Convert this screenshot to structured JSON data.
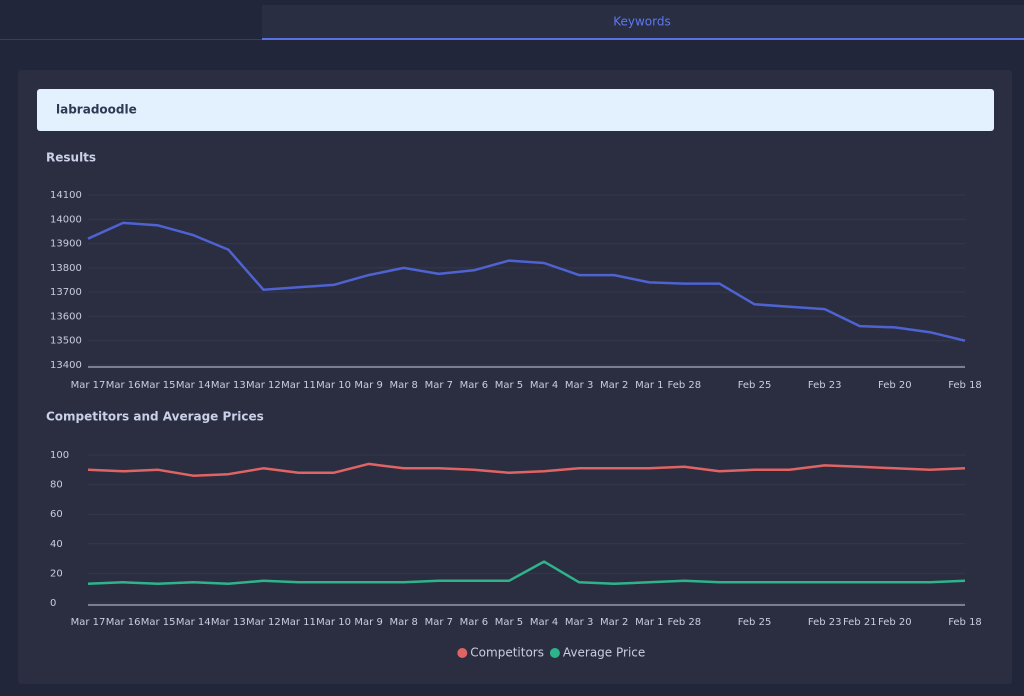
{
  "tabs": [
    "Keywords"
  ],
  "keyword": "labradoodle",
  "chart_data": [
    {
      "type": "line",
      "title": "Results",
      "categories": [
        "Mar 17",
        "Mar 16",
        "Mar 15",
        "Mar 14",
        "Mar 13",
        "Mar 12",
        "Mar 11",
        "Mar 10",
        "Mar 9",
        "Mar 8",
        "Mar 7",
        "Mar 6",
        "Mar 5",
        "Mar 4",
        "Mar 3",
        "Mar 2",
        "Mar 1",
        "Feb 28",
        null,
        "Feb 25",
        null,
        "Feb 23",
        null,
        "Feb 20",
        null,
        "Feb 18"
      ],
      "values": [
        13920,
        13985,
        13975,
        13935,
        13875,
        13710,
        13720,
        13730,
        13770,
        13800,
        13775,
        13790,
        13830,
        13820,
        13770,
        13770,
        13740,
        13735,
        13735,
        13650,
        13640,
        13630,
        13560,
        13555,
        13535,
        13500
      ],
      "color": "#4e63d1",
      "ylim": [
        13400,
        14100
      ],
      "yticks": [
        13400,
        13500,
        13600,
        13700,
        13800,
        13900,
        14000,
        14100
      ],
      "grid": true
    },
    {
      "type": "line",
      "title": "Competitors and Average Prices",
      "categories": [
        "Mar 17",
        "Mar 16",
        "Mar 15",
        "Mar 14",
        "Mar 13",
        "Mar 12",
        "Mar 11",
        "Mar 10",
        "Mar 9",
        "Mar 8",
        "Mar 7",
        "Mar 6",
        "Mar 5",
        "Mar 4",
        "Mar 3",
        "Mar 2",
        "Mar 1",
        "Feb 28",
        null,
        "Feb 25",
        null,
        "Feb 23",
        "Feb 21",
        "Feb 20",
        null,
        "Feb 18"
      ],
      "series": [
        {
          "name": "Competitors",
          "color": "#e06464",
          "values": [
            90,
            89,
            90,
            86,
            87,
            91,
            88,
            88,
            94,
            91,
            91,
            90,
            88,
            89,
            91,
            91,
            91,
            92,
            89,
            90,
            90,
            93,
            92,
            91,
            90,
            91
          ]
        },
        {
          "name": "Average Price",
          "color": "#2fb38a",
          "values": [
            13,
            14,
            13,
            14,
            13,
            15,
            14,
            14,
            14,
            14,
            15,
            15,
            15,
            28,
            14,
            13,
            14,
            15,
            14,
            14,
            14,
            14,
            14,
            14,
            14,
            15
          ]
        }
      ],
      "ylim": [
        0,
        100
      ],
      "yticks": [
        0,
        20,
        40,
        60,
        80,
        100
      ],
      "grid": true,
      "legend": "bottom"
    }
  ]
}
